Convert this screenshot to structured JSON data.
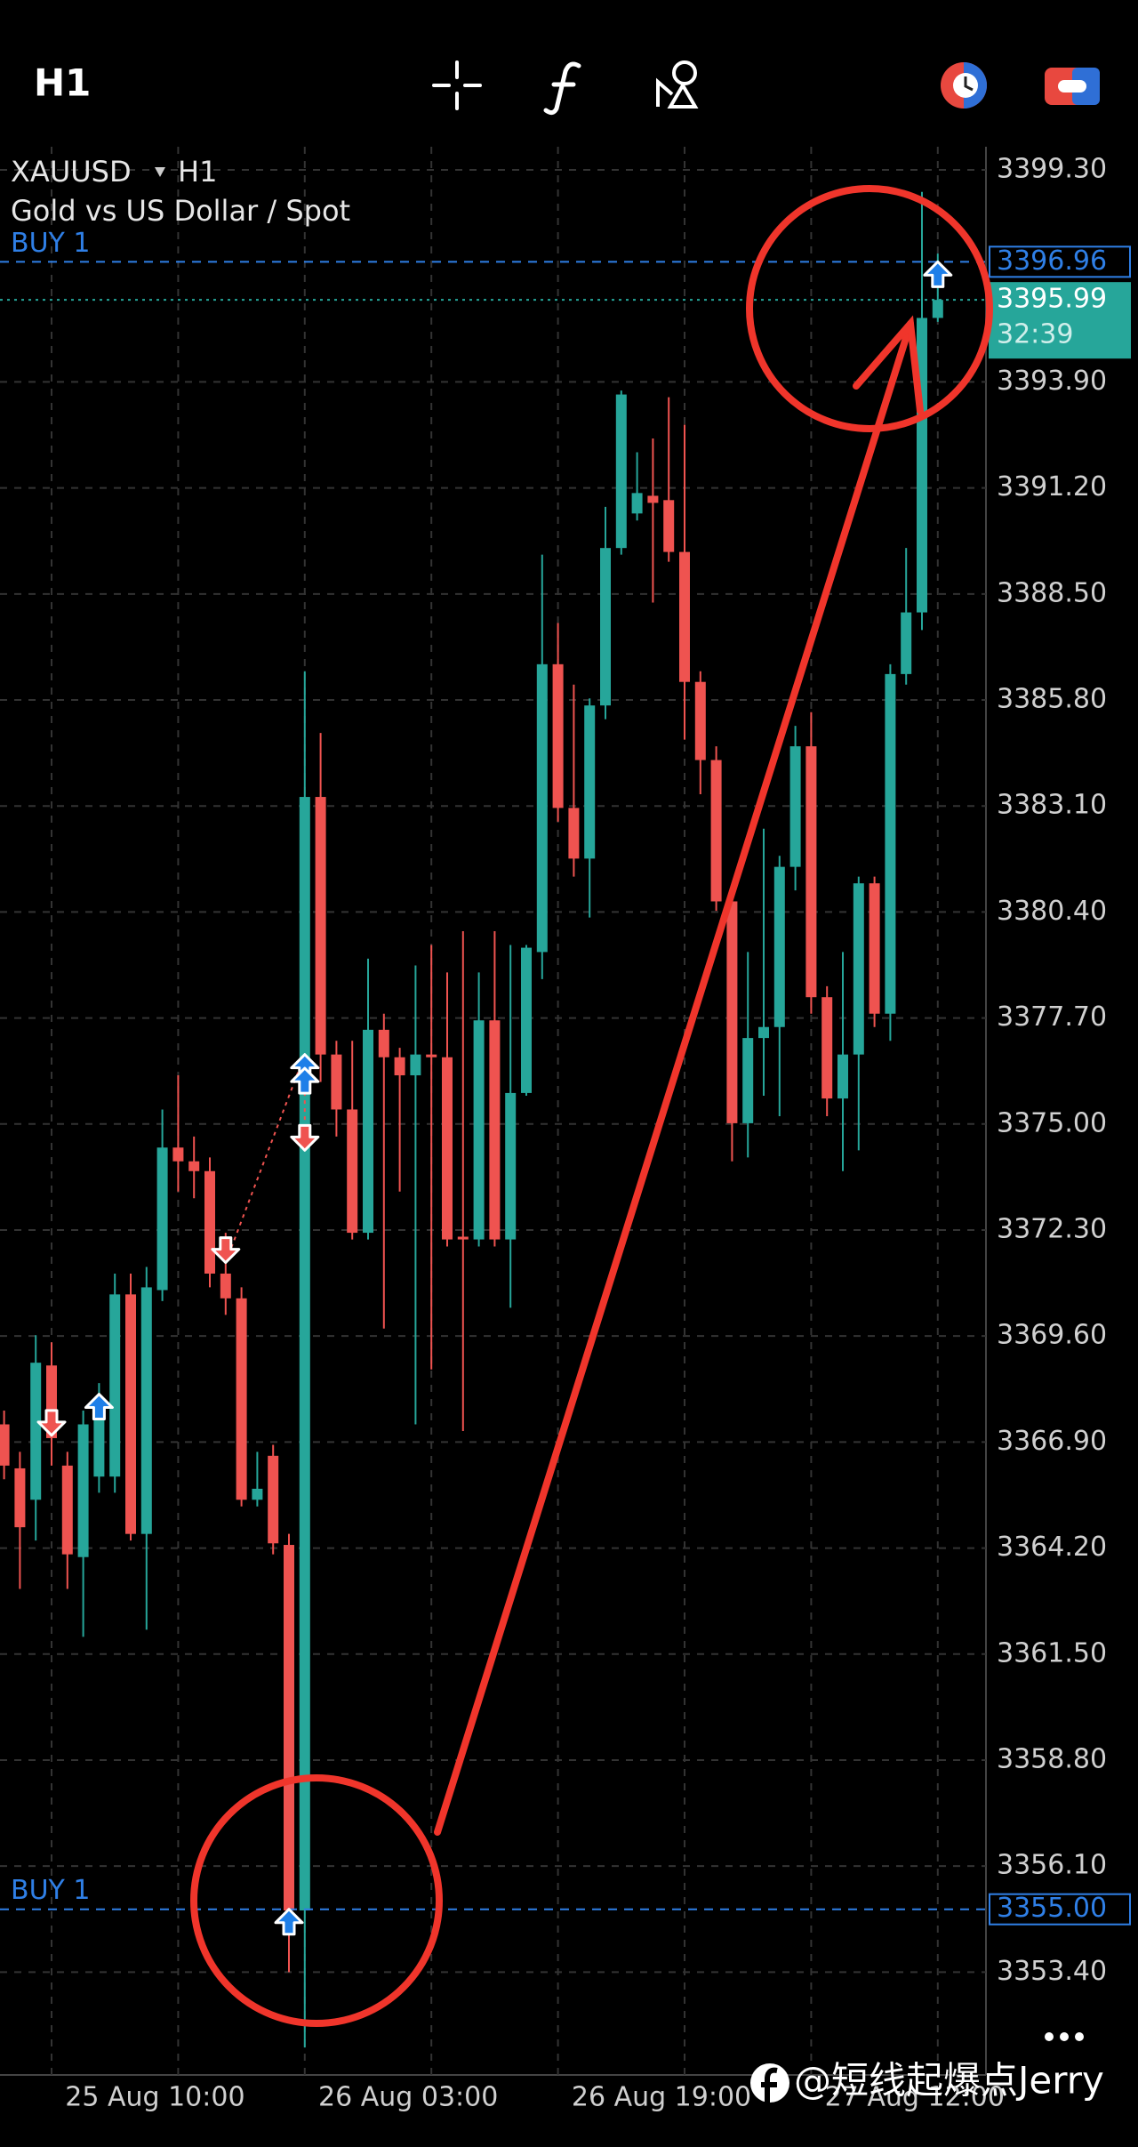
{
  "toolbar": {
    "timeframe": "H1"
  },
  "chart_data": {
    "type": "candlestick",
    "symbol": "XAUUSD",
    "timeframe": "H1",
    "description": "Gold vs US Dollar / Spot",
    "categories": [
      null,
      null,
      null,
      null,
      null,
      null,
      null,
      null,
      null,
      null,
      null,
      "25 Aug 10:00",
      null,
      null,
      null,
      null,
      null,
      null,
      null,
      null,
      null,
      null,
      null,
      null,
      null,
      null,
      null,
      "26 Aug 03:00",
      null,
      null,
      null,
      null,
      null,
      null,
      null,
      null,
      null,
      null,
      null,
      null,
      null,
      null,
      null,
      "26 Aug 19:00",
      null,
      null,
      null,
      null,
      null,
      null,
      null,
      null,
      null,
      null,
      null,
      null,
      null,
      null,
      null,
      "27 Aug 12:00"
    ],
    "open": [
      3367.35,
      3366.23,
      3365.43,
      3368.85,
      3366.3,
      3363.97,
      3366.02,
      3366.02,
      3370.66,
      3364.56,
      3370.77,
      3374.4,
      3374.05,
      3373.8,
      3371.19,
      3370.56,
      3365.43,
      3366.55,
      3364.28,
      3354.97,
      3383.33,
      3376.77,
      3375.37,
      3372.23,
      3377.4,
      3376.7,
      3376.24,
      3376.77,
      3376.7,
      3372.13,
      3372.06,
      3377.64,
      3372.06,
      3375.79,
      3379.38,
      3386.71,
      3383.05,
      3381.76,
      3385.66,
      3389.67,
      3390.55,
      3391.0,
      3390.89,
      3389.57,
      3386.26,
      3384.27,
      3380.67,
      3375.02,
      3377.19,
      3377.47,
      3381.55,
      3384.62,
      3378.23,
      3375.65,
      3376.77,
      3381.13,
      3377.81,
      3386.46,
      3388.03,
      3395.53
    ],
    "high": [
      3367.7,
      3366.65,
      3369.62,
      3369.44,
      3366.65,
      3367.7,
      3368.4,
      3371.19,
      3371.19,
      3371.36,
      3375.37,
      3376.24,
      3374.68,
      3374.15,
      3372.23,
      3370.84,
      3366.65,
      3366.83,
      3364.56,
      3386.53,
      3384.96,
      3377.12,
      3377.12,
      3379.21,
      3377.81,
      3376.94,
      3379.04,
      3379.56,
      3378.86,
      3379.91,
      3378.86,
      3379.91,
      3379.56,
      3379.56,
      3389.5,
      3387.76,
      3386.19,
      3385.84,
      3390.72,
      3393.68,
      3392.11,
      3392.46,
      3393.51,
      3392.81,
      3386.53,
      3384.62,
      3380.95,
      3379.38,
      3382.52,
      3381.83,
      3385.14,
      3385.49,
      3378.51,
      3379.38,
      3381.3,
      3381.3,
      3386.71,
      3389.67,
      3398.74,
      3397.17
    ],
    "low": [
      3365.95,
      3363.16,
      3364.39,
      3366.3,
      3363.16,
      3361.94,
      3365.61,
      3365.61,
      3364.39,
      3362.12,
      3370.49,
      3373.28,
      3373.11,
      3370.84,
      3370.14,
      3365.26,
      3365.26,
      3364.04,
      3353.4,
      3351.48,
      3376.07,
      3374.68,
      3372.06,
      3372.06,
      3369.79,
      3373.28,
      3367.35,
      3368.75,
      3371.88,
      3367.18,
      3371.88,
      3371.88,
      3370.32,
      3375.72,
      3378.69,
      3382.7,
      3381.3,
      3380.26,
      3385.31,
      3389.5,
      3390.37,
      3388.28,
      3389.32,
      3384.79,
      3383.4,
      3380.43,
      3374.05,
      3374.15,
      3375.72,
      3375.2,
      3380.95,
      3377.81,
      3375.2,
      3373.8,
      3374.33,
      3377.47,
      3377.12,
      3386.19,
      3387.58,
      3395.43
    ],
    "close": [
      3366.3,
      3364.73,
      3368.92,
      3367.0,
      3364.04,
      3367.35,
      3367.52,
      3370.66,
      3364.56,
      3370.84,
      3374.4,
      3374.05,
      3373.8,
      3371.19,
      3370.56,
      3365.43,
      3365.71,
      3364.32,
      3354.97,
      3383.33,
      3376.77,
      3375.37,
      3372.23,
      3377.4,
      3376.7,
      3376.24,
      3376.77,
      3376.7,
      3372.06,
      3372.06,
      3377.64,
      3372.06,
      3375.79,
      3379.49,
      3386.71,
      3383.05,
      3381.76,
      3385.66,
      3389.67,
      3393.58,
      3391.07,
      3390.82,
      3389.57,
      3386.26,
      3384.27,
      3380.67,
      3375.02,
      3377.19,
      3377.47,
      3381.55,
      3384.62,
      3378.23,
      3375.65,
      3376.77,
      3381.13,
      3377.81,
      3386.46,
      3388.03,
      3395.53,
      3395.99
    ],
    "up_color": "#26a69a",
    "down_color": "#ef5350",
    "ylim": [
      3350.78,
      3399.89
    ],
    "yticks": [
      {
        "value": 3399.3,
        "label": "3399.30"
      },
      {
        "value": 3393.9,
        "label": "3393.90"
      },
      {
        "value": 3391.2,
        "label": "3391.20"
      },
      {
        "value": 3388.5,
        "label": "3388.50"
      },
      {
        "value": 3385.8,
        "label": "3385.80"
      },
      {
        "value": 3383.1,
        "label": "3383.10"
      },
      {
        "value": 3380.4,
        "label": "3380.40"
      },
      {
        "value": 3377.7,
        "label": "3377.70"
      },
      {
        "value": 3375,
        "label": "3375.00"
      },
      {
        "value": 3372.3,
        "label": "3372.30"
      },
      {
        "value": 3369.6,
        "label": "3369.60"
      },
      {
        "value": 3366.9,
        "label": "3366.90"
      },
      {
        "value": 3364.2,
        "label": "3364.20"
      },
      {
        "value": 3361.5,
        "label": "3361.50"
      },
      {
        "value": 3358.8,
        "label": "3358.80"
      },
      {
        "value": 3356.1,
        "label": "3356.10"
      },
      {
        "value": 3353.4,
        "label": "3353.40"
      }
    ],
    "grid": true,
    "order_lines": [
      {
        "label": "BUY 1",
        "price": {
          "value": 3396.96,
          "label": "3396.96"
        },
        "color": "#2f7fe6"
      },
      {
        "label": "BUY 1",
        "price": {
          "value": 3355,
          "label": "3355.00"
        },
        "color": "#2f7fe6"
      }
    ],
    "current_price": {
      "value": 3395.99,
      "label": "3395.99"
    },
    "countdown": "32:39",
    "trade_markers": [
      {
        "index": 3,
        "price": 3367.07,
        "direction": "down",
        "color": "#ef5350"
      },
      {
        "index": 6,
        "price": 3368.12,
        "direction": "up",
        "color": "#1e7fe8"
      },
      {
        "index": 14,
        "price": 3371.47,
        "direction": "down",
        "color": "#ef5350"
      },
      {
        "index": 19,
        "price": 3376.77,
        "direction": "up",
        "color": "#1e7fe8"
      },
      {
        "index": 19,
        "price": 3376.42,
        "direction": "up",
        "color": "#1e7fe8"
      },
      {
        "index": 19,
        "price": 3374.33,
        "direction": "down",
        "color": "#ef5350"
      },
      {
        "index": 18,
        "price": 3355,
        "direction": "up",
        "color": "#1e7fe8"
      },
      {
        "index": 59,
        "price": 3396.96,
        "direction": "up",
        "color": "#1e7fe8"
      }
    ]
  },
  "watermark": "@短线起爆点Jerry"
}
